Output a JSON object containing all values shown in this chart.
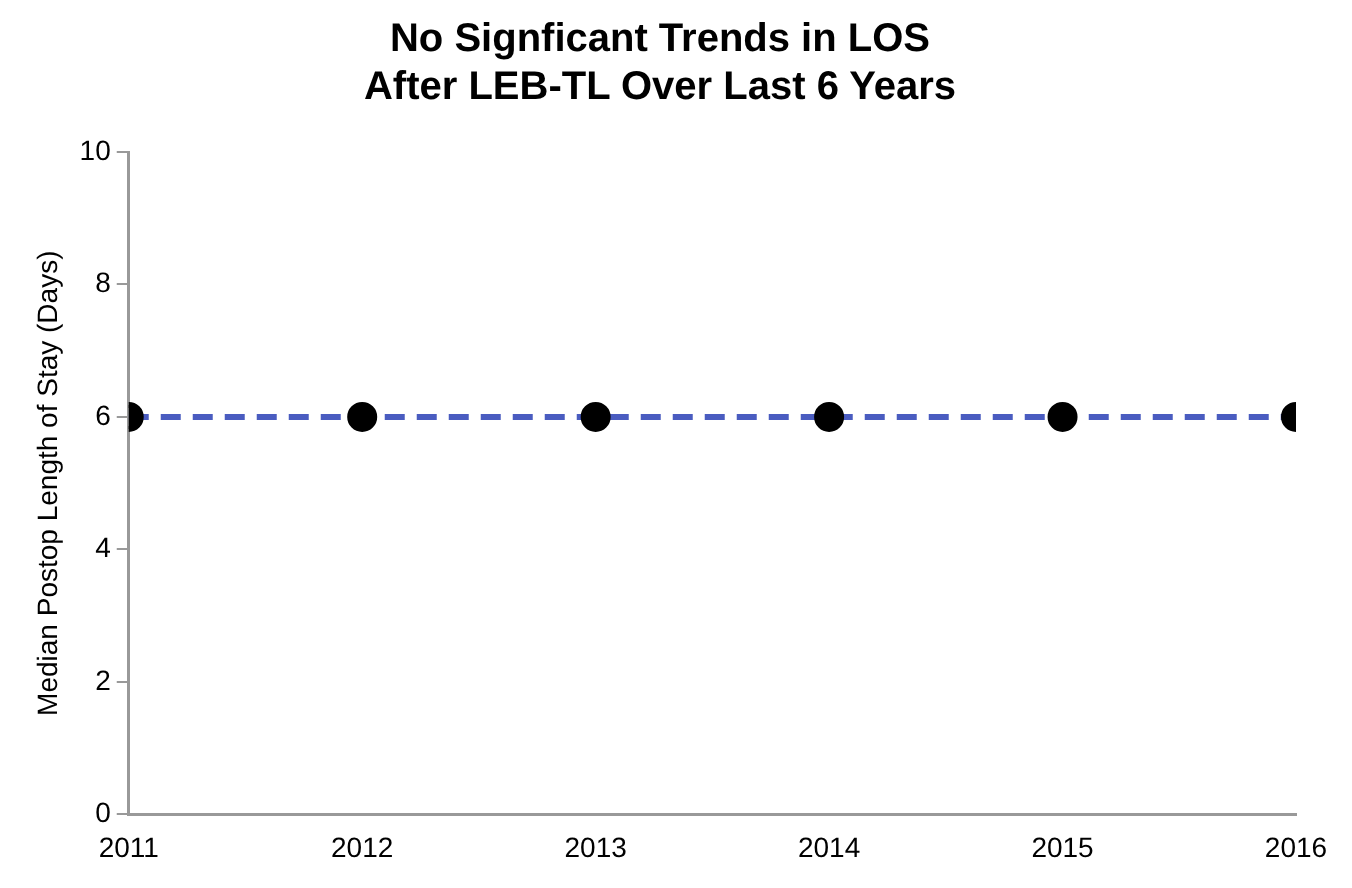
{
  "chart_data": {
    "type": "scatter",
    "title": "No Signficant Trends in LOS After LEB-TL Over Last 6 Years",
    "ylabel": "Median Postop Length of Stay (Days)",
    "x": [
      2011,
      2012,
      2013,
      2014,
      2015,
      2016
    ],
    "series": [
      {
        "color": "#000000",
        "values": [
          6,
          6,
          6,
          6,
          6,
          6
        ]
      },
      {
        "type": "line",
        "color": "#4a5cc0",
        "x": [
          2011,
          2016
        ],
        "values": [
          6,
          6
        ],
        "line_style": "dashed",
        "marker": "none"
      }
    ],
    "marker": "circle",
    "xlim": [
      2011,
      2016
    ],
    "xticks": [
      2011,
      2012,
      2013,
      2014,
      2015,
      2016
    ],
    "ylim": [
      0,
      10
    ],
    "yticks": [
      0,
      2,
      4,
      6,
      8,
      10
    ],
    "grid": false,
    "legend": false
  }
}
